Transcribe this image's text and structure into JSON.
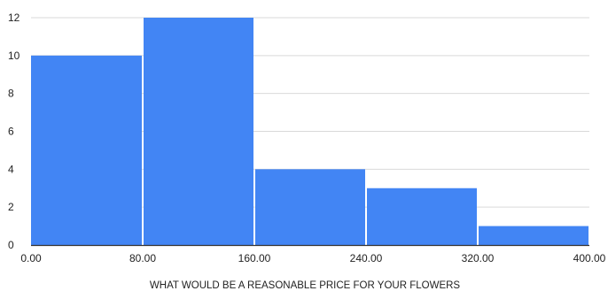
{
  "chart_data": {
    "type": "bar",
    "title": "",
    "xlabel": "WHAT WOULD BE A REASONABLE PRICE FOR YOUR FLOWERS",
    "ylabel": "",
    "bins": [
      {
        "range": [
          0,
          80
        ],
        "value": 10
      },
      {
        "range": [
          80,
          160
        ],
        "value": 12
      },
      {
        "range": [
          160,
          240
        ],
        "value": 4
      },
      {
        "range": [
          240,
          320
        ],
        "value": 3
      },
      {
        "range": [
          320,
          400
        ],
        "value": 1
      }
    ],
    "x_ticks": [
      "0.00",
      "80.00",
      "160.00",
      "240.00",
      "320.00",
      "400.00"
    ],
    "x_tick_values": [
      0,
      80,
      160,
      240,
      320,
      400
    ],
    "y_ticks": [
      "0",
      "2",
      "4",
      "6",
      "8",
      "10",
      "12"
    ],
    "y_tick_values": [
      0,
      2,
      4,
      6,
      8,
      10,
      12
    ],
    "xlim": [
      0,
      400
    ],
    "ylim": [
      0,
      12
    ],
    "grid": "horizontal",
    "bar_color": "#4285f4",
    "grid_color": "#d9d9d9",
    "axis_color": "#333333",
    "text_color": "#222222"
  }
}
